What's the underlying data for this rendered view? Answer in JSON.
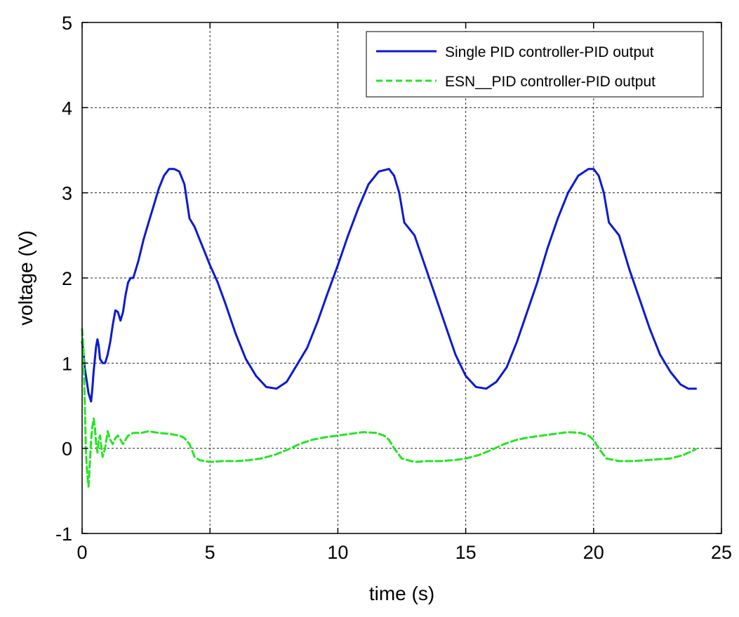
{
  "chart_data": {
    "type": "line",
    "title": "",
    "xlabel": "time (s)",
    "ylabel": "voltage (V)",
    "xlim": [
      0,
      25
    ],
    "ylim": [
      -1,
      5
    ],
    "xticks": [
      0,
      5,
      10,
      15,
      20,
      25
    ],
    "yticks": [
      -1,
      0,
      1,
      2,
      3,
      4,
      5
    ],
    "grid": true,
    "legend_position": "top-right",
    "series": [
      {
        "name": "Single PID controller-PID output",
        "color": "#0a1ad2",
        "style": "solid",
        "x": [
          0.0,
          0.05,
          0.1,
          0.15,
          0.2,
          0.25,
          0.3,
          0.35,
          0.4,
          0.45,
          0.5,
          0.55,
          0.6,
          0.65,
          0.7,
          0.8,
          0.9,
          1.0,
          1.1,
          1.2,
          1.3,
          1.4,
          1.5,
          1.6,
          1.7,
          1.8,
          1.9,
          2.0,
          2.2,
          2.4,
          2.6,
          2.8,
          3.0,
          3.2,
          3.4,
          3.6,
          3.8,
          4.0,
          4.2,
          4.4,
          4.6,
          4.8,
          5.0,
          5.3,
          5.6,
          6.0,
          6.4,
          6.8,
          7.2,
          7.6,
          8.0,
          8.4,
          8.8,
          9.2,
          9.6,
          10.0,
          10.4,
          10.8,
          11.2,
          11.6,
          12.0,
          12.2,
          12.4,
          12.6,
          13.0,
          13.4,
          13.8,
          14.2,
          14.6,
          15.0,
          15.4,
          15.8,
          16.2,
          16.6,
          17.0,
          17.4,
          17.8,
          18.2,
          18.6,
          19.0,
          19.4,
          19.8,
          20.0,
          20.2,
          20.4,
          20.6,
          21.0,
          21.4,
          21.8,
          22.2,
          22.6,
          23.0,
          23.4,
          23.7,
          24.0
        ],
        "values": [
          1.25,
          1.15,
          0.95,
          0.85,
          0.75,
          0.65,
          0.6,
          0.55,
          0.7,
          0.9,
          1.05,
          1.2,
          1.28,
          1.2,
          1.05,
          1.0,
          1.0,
          1.1,
          1.25,
          1.45,
          1.62,
          1.6,
          1.5,
          1.6,
          1.8,
          1.95,
          2.0,
          2.0,
          2.2,
          2.45,
          2.65,
          2.85,
          3.05,
          3.2,
          3.28,
          3.28,
          3.25,
          3.1,
          2.7,
          2.6,
          2.45,
          2.3,
          2.15,
          1.95,
          1.7,
          1.35,
          1.05,
          0.85,
          0.72,
          0.7,
          0.78,
          0.98,
          1.18,
          1.48,
          1.82,
          2.15,
          2.5,
          2.82,
          3.1,
          3.25,
          3.28,
          3.2,
          3.0,
          2.65,
          2.5,
          2.15,
          1.8,
          1.45,
          1.1,
          0.85,
          0.72,
          0.7,
          0.78,
          0.95,
          1.25,
          1.6,
          1.95,
          2.35,
          2.7,
          3.0,
          3.2,
          3.28,
          3.28,
          3.2,
          3.0,
          2.65,
          2.5,
          2.1,
          1.75,
          1.4,
          1.1,
          0.9,
          0.75,
          0.7,
          0.7
        ]
      },
      {
        "name": "ESN__PID controller-PID output",
        "color": "#22e622",
        "style": "dashed",
        "x": [
          0.0,
          0.05,
          0.1,
          0.15,
          0.2,
          0.25,
          0.3,
          0.35,
          0.4,
          0.45,
          0.5,
          0.55,
          0.6,
          0.65,
          0.7,
          0.8,
          0.9,
          1.0,
          1.1,
          1.2,
          1.3,
          1.4,
          1.5,
          1.6,
          1.7,
          1.8,
          2.0,
          2.3,
          2.6,
          3.0,
          3.4,
          3.8,
          4.0,
          4.2,
          4.4,
          4.6,
          5.0,
          5.5,
          6.0,
          6.5,
          7.0,
          7.5,
          8.0,
          8.5,
          9.0,
          9.5,
          10.0,
          10.5,
          11.0,
          11.5,
          11.8,
          12.0,
          12.2,
          12.5,
          13.0,
          13.5,
          14.0,
          14.5,
          15.0,
          15.5,
          16.0,
          16.5,
          17.0,
          17.5,
          18.0,
          18.5,
          19.0,
          19.5,
          19.8,
          20.0,
          20.2,
          20.5,
          21.0,
          21.5,
          22.0,
          22.5,
          23.0,
          23.5,
          24.0
        ],
        "values": [
          1.4,
          1.2,
          0.6,
          -0.05,
          -0.3,
          -0.45,
          -0.2,
          0.1,
          0.25,
          0.35,
          0.25,
          0.05,
          -0.05,
          0.1,
          0.15,
          -0.1,
          0.0,
          0.2,
          0.1,
          0.05,
          0.12,
          0.15,
          0.1,
          0.05,
          0.1,
          0.15,
          0.18,
          0.18,
          0.2,
          0.18,
          0.17,
          0.15,
          0.12,
          0.05,
          -0.1,
          -0.14,
          -0.16,
          -0.15,
          -0.15,
          -0.14,
          -0.12,
          -0.08,
          -0.02,
          0.05,
          0.1,
          0.13,
          0.15,
          0.17,
          0.19,
          0.18,
          0.15,
          0.1,
          0.0,
          -0.12,
          -0.16,
          -0.15,
          -0.15,
          -0.14,
          -0.12,
          -0.08,
          -0.02,
          0.05,
          0.1,
          0.13,
          0.15,
          0.17,
          0.19,
          0.18,
          0.15,
          0.1,
          0.0,
          -0.12,
          -0.15,
          -0.15,
          -0.14,
          -0.13,
          -0.12,
          -0.08,
          -0.01
        ]
      }
    ]
  }
}
